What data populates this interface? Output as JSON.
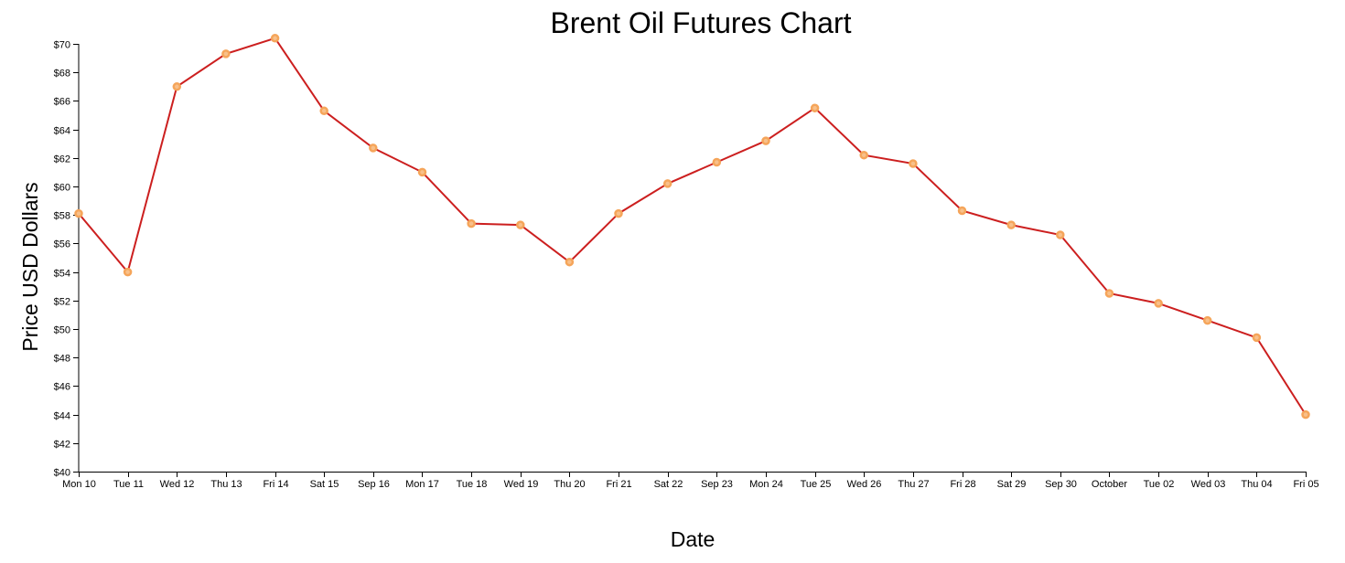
{
  "chart_data": {
    "type": "line",
    "title": "Brent Oil Futures Chart",
    "xlabel": "Date",
    "ylabel": "Price USD Dollars",
    "ylim": [
      40,
      70
    ],
    "yticks": [
      40,
      42,
      44,
      46,
      48,
      50,
      52,
      54,
      56,
      58,
      60,
      62,
      64,
      66,
      68,
      70
    ],
    "ytick_labels": [
      "$40",
      "$42",
      "$44",
      "$46",
      "$48",
      "$50",
      "$52",
      "$54",
      "$56",
      "$58",
      "$60",
      "$62",
      "$64",
      "$66",
      "$68",
      "$70"
    ],
    "categories": [
      "Mon 10",
      "Tue 11",
      "Wed 12",
      "Thu 13",
      "Fri 14",
      "Sat 15",
      "Sep 16",
      "Mon 17",
      "Tue 18",
      "Wed 19",
      "Thu 20",
      "Fri 21",
      "Sat 22",
      "Sep 23",
      "Mon 24",
      "Tue 25",
      "Wed 26",
      "Thu 27",
      "Fri 28",
      "Sat 29",
      "Sep 30",
      "October",
      "Tue 02",
      "Wed 03",
      "Thu 04",
      "Fri 05"
    ],
    "values": [
      58.1,
      54.0,
      67.0,
      69.3,
      70.4,
      65.3,
      62.7,
      61.0,
      57.4,
      57.3,
      54.7,
      58.1,
      60.2,
      61.7,
      63.2,
      65.5,
      62.2,
      61.6,
      58.3,
      57.3,
      56.6,
      52.5,
      51.8,
      50.6,
      49.4,
      44.0
    ],
    "grid": false,
    "legend": "none",
    "colors": {
      "line": "#cc1f1f",
      "point_stroke": "#f5a55a",
      "point_fill": "#f8c08a"
    }
  }
}
